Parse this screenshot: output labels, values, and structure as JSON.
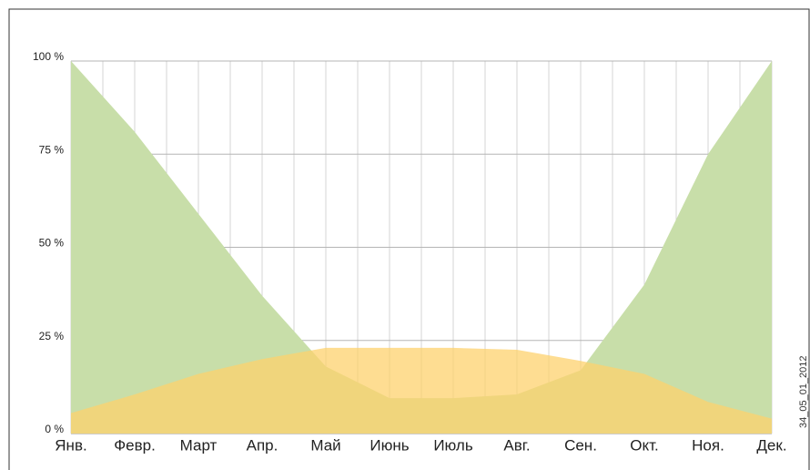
{
  "chart_data": {
    "type": "area",
    "categories": [
      "Янв.",
      "Февр.",
      "Март",
      "Апр.",
      "Май",
      "Июнь",
      "Июль",
      "Авг.",
      "Сен.",
      "Окт.",
      "Ноя.",
      "Дек."
    ],
    "series": [
      {
        "color": "#c8dea9",
        "values": [
          100,
          81,
          59,
          37,
          18,
          9.5,
          9.5,
          10.5,
          17,
          40,
          75,
          100
        ]
      },
      {
        "color": "#fdd26e",
        "values": [
          5.5,
          10.5,
          16,
          20,
          23,
          23,
          23,
          22.5,
          19.5,
          16,
          8.5,
          4
        ]
      }
    ],
    "ylim": [
      0,
      100
    ],
    "yticks": [
      {
        "value": 0,
        "label": "0 %"
      },
      {
        "value": 25,
        "label": "25 %"
      },
      {
        "value": 50,
        "label": "50 %"
      },
      {
        "value": 75,
        "label": "75 %"
      },
      {
        "value": 100,
        "label": "100 %"
      }
    ],
    "grid": true,
    "annotation": "34_05_01_2012"
  }
}
